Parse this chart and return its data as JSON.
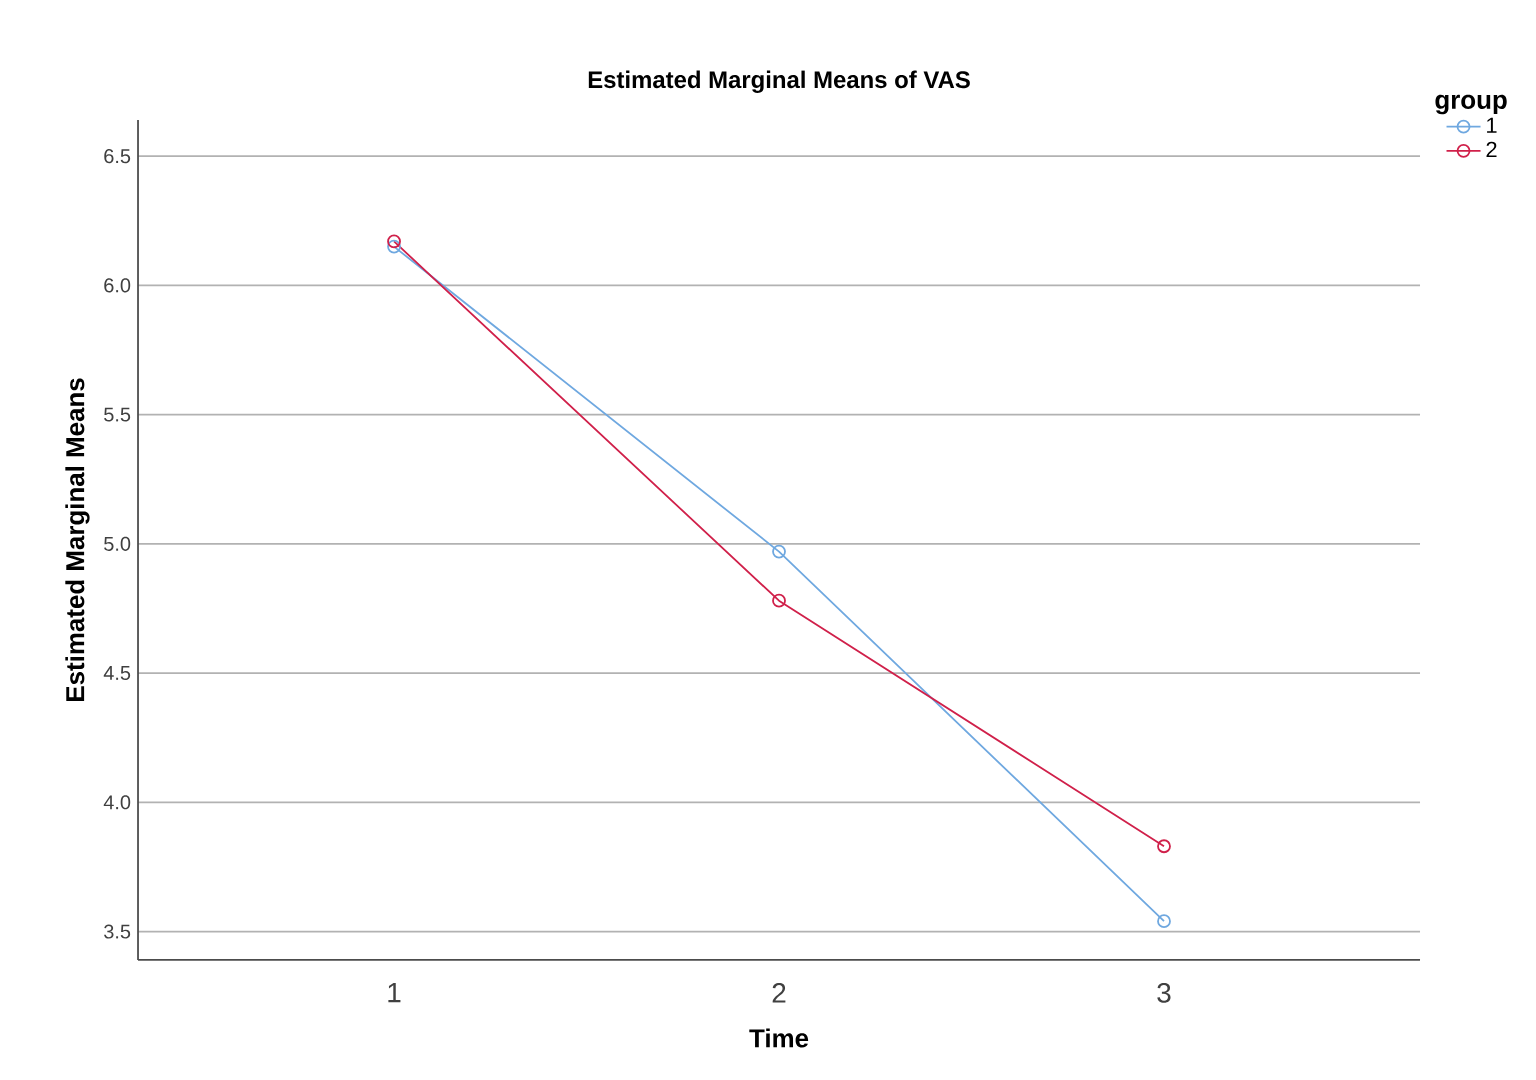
{
  "chart_data": {
    "type": "line",
    "title": "Estimated Marginal Means of VAS",
    "xlabel": "Time",
    "ylabel": "Estimated Marginal Means",
    "legend_title": "group",
    "categories": [
      "1",
      "2",
      "3"
    ],
    "series": [
      {
        "name": "1",
        "color": "#6fa8e0",
        "values": [
          6.15,
          4.97,
          3.54
        ]
      },
      {
        "name": "2",
        "color": "#d0204a",
        "values": [
          6.17,
          4.78,
          3.83
        ]
      }
    ],
    "ylim": [
      3.39,
      6.64
    ],
    "yticks": [
      3.5,
      {
        "value": 4,
        "label": "4.0"
      },
      4.5,
      {
        "value": 5,
        "label": "5.0"
      },
      5.5,
      {
        "value": 6,
        "label": "6.0"
      },
      6.5
    ],
    "grid": "y",
    "legend": "top right",
    "marker": "circle",
    "line_style": "solid"
  }
}
